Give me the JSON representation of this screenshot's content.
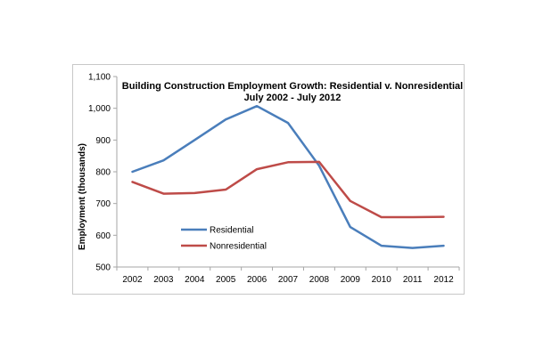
{
  "chart_data": {
    "type": "line",
    "title": "Building Construction Employment Growth:  Residential v. Nonresidential",
    "subtitle": "July 2002 - July 2012",
    "xlabel": "",
    "ylabel": "Employment (thousands)",
    "categories": [
      "2002",
      "2003",
      "2004",
      "2005",
      "2006",
      "2007",
      "2008",
      "2009",
      "2010",
      "2011",
      "2012"
    ],
    "ylim": [
      500,
      1100
    ],
    "yticks": [
      500,
      600,
      700,
      800,
      900,
      1000,
      1100
    ],
    "ytick_labels": [
      "500",
      "600",
      "700",
      "800",
      "900",
      "1,000",
      "1,100"
    ],
    "grid": false,
    "legend_position": "inside-lower-left",
    "series": [
      {
        "name": "Residential",
        "color": "#4a7ebb",
        "values": [
          800,
          836,
          900,
          965,
          1007,
          954,
          819,
          626,
          567,
          560,
          567
        ]
      },
      {
        "name": "Nonresidential",
        "color": "#be4b48",
        "values": [
          768,
          731,
          733,
          744,
          808,
          830,
          831,
          708,
          657,
          657,
          658
        ]
      }
    ]
  }
}
